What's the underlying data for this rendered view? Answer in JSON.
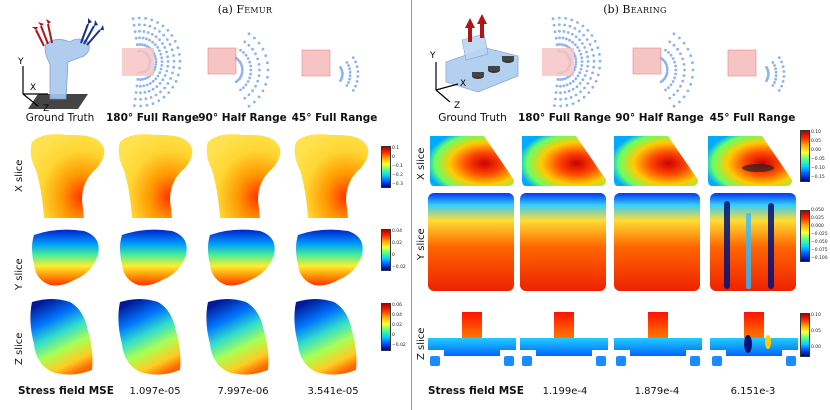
{
  "panels": {
    "left": {
      "prefix": "(a) ",
      "name": "Femur"
    },
    "right": {
      "prefix": "(b) ",
      "name": "Bearing"
    }
  },
  "columns": [
    "Ground Truth",
    "180° Full Range",
    "90° Half Range",
    "45° Full Range"
  ],
  "rows": [
    "X slice",
    "Y slice",
    "Z slice"
  ],
  "axes": {
    "x": "X",
    "y": "Y",
    "z": "Z"
  },
  "mse_label": "Stress field MSE",
  "femur_mse": [
    "1.097e-05",
    "7.997e-06",
    "3.541e-05"
  ],
  "bearing_mse": [
    "1.199e-4",
    "1.879e-4",
    "6.151e-3"
  ],
  "femur_colorbars": {
    "x": [
      "0.1",
      "0",
      "−0.1",
      "−0.2",
      "−0.3"
    ],
    "y": [
      "0.04",
      "0.02",
      "0",
      "−0.02"
    ],
    "z": [
      "0.06",
      "0.04",
      "0.02",
      "0",
      "−0.02"
    ]
  },
  "bearing_colorbars": {
    "x": [
      "0.10",
      "0.05",
      "0.00",
      "−0.05",
      "−0.10",
      "−0.15"
    ],
    "y": [
      "0.050",
      "0.025",
      "0.000",
      "−0.025",
      "−0.050",
      "−0.075",
      "−0.100"
    ],
    "z": [
      "0.10",
      "0.05",
      "0.00"
    ]
  },
  "colors": {
    "blue_dots": "#8fb3ee",
    "red_cube": "#f7c4c4",
    "red_arrow": "#b01515",
    "blue_arrow": "#1a2f8f",
    "divider": "#999999"
  }
}
